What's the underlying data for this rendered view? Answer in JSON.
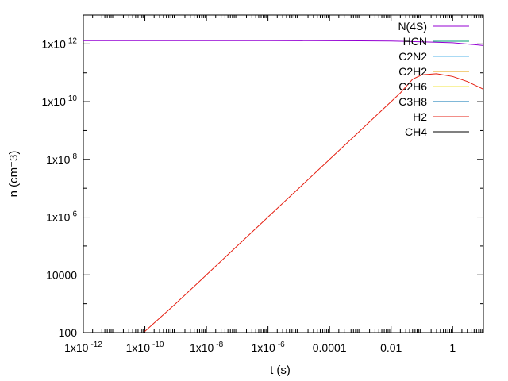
{
  "chart_data": {
    "type": "line",
    "xlabel": "t (s)",
    "ylabel": "n (cm⁻3)",
    "x_scale": "log",
    "y_scale": "log",
    "xlim": [
      1e-12,
      10
    ],
    "ylim": [
      100,
      10000000000000.0
    ],
    "x_ticks": [
      {
        "value": 1e-12,
        "base": "1x10",
        "exp": "-12"
      },
      {
        "value": 1e-10,
        "base": "1x10",
        "exp": "-10"
      },
      {
        "value": 1e-08,
        "base": "1x10",
        "exp": "-8"
      },
      {
        "value": 1e-06,
        "base": "1x10",
        "exp": "-6"
      },
      {
        "value": 0.0001,
        "base": "0.0001",
        "exp": ""
      },
      {
        "value": 0.01,
        "base": "0.01",
        "exp": ""
      },
      {
        "value": 1,
        "base": "1",
        "exp": ""
      }
    ],
    "y_ticks": [
      {
        "value": 100,
        "base": "100",
        "exp": ""
      },
      {
        "value": 10000,
        "base": "10000",
        "exp": ""
      },
      {
        "value": 1000000.0,
        "base": "1x10",
        "exp": "6"
      },
      {
        "value": 100000000.0,
        "base": "1x10",
        "exp": "8"
      },
      {
        "value": 10000000000.0,
        "base": "1x10",
        "exp": "10"
      },
      {
        "value": 1000000000000.0,
        "base": "1x10",
        "exp": "12"
      }
    ],
    "grid": false,
    "legend_position": "top-right",
    "series": [
      {
        "name": "N(4S)",
        "color": "#9400d3",
        "x": [
          1e-12,
          1e-06,
          0.001,
          0.01,
          0.1,
          1,
          5,
          10
        ],
        "y": [
          1300000000000.0,
          1300000000000.0,
          1280000000000.0,
          1250000000000.0,
          1180000000000.0,
          1100000000000.0,
          950000000000.0,
          880000000000.0
        ]
      },
      {
        "name": "HCN",
        "color": "#009e73",
        "x": [],
        "y": []
      },
      {
        "name": "C2N2",
        "color": "#56b4e9",
        "x": [],
        "y": []
      },
      {
        "name": "C2H2",
        "color": "#e69f00",
        "x": [],
        "y": []
      },
      {
        "name": "C2H6",
        "color": "#f0e442",
        "x": [],
        "y": []
      },
      {
        "name": "C3H8",
        "color": "#0072b2",
        "x": [],
        "y": []
      },
      {
        "name": "H2",
        "color": "#e51e10",
        "x": [
          1e-10,
          1e-09,
          1e-08,
          1e-07,
          1e-06,
          1e-05,
          0.0001,
          0.001,
          0.005,
          0.02,
          0.05,
          0.1,
          0.3,
          1,
          3,
          10
        ],
        "y": [
          110,
          1000,
          10000.0,
          100000.0,
          1000000.0,
          10000000.0,
          100000000.0,
          1000000000.0,
          5000000000.0,
          20000000000.0,
          60000000000.0,
          85000000000.0,
          93000000000.0,
          75000000000.0,
          50000000000.0,
          27000000000.0
        ]
      },
      {
        "name": "CH4",
        "color": "#000000",
        "x": [],
        "y": []
      }
    ]
  }
}
